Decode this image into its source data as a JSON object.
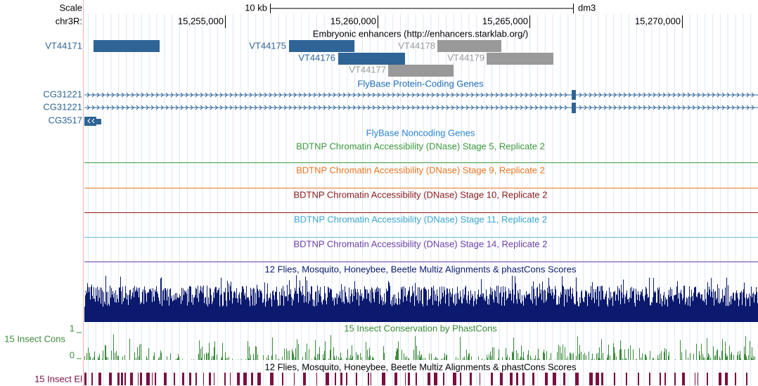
{
  "header": {
    "scale_label": "Scale",
    "chrom_label": "chr3R:",
    "scale_bar": "10 kb",
    "assembly": "dm3",
    "positions": [
      "15,255,000",
      "15,260,000",
      "15,265,000",
      "15,270,000"
    ]
  },
  "tracks": [
    {
      "title": "Embryonic enhancers (http://enhancers.starklab.org/)",
      "items": [
        "VT44171",
        "VT44175",
        "VT44178",
        "VT44176",
        "VT44179",
        "VT44177"
      ]
    },
    {
      "title": "FlyBase Protein-Coding Genes",
      "items": [
        "CG31221",
        "CG31221",
        "CG3517"
      ]
    },
    {
      "title": "FlyBase Noncoding Genes"
    },
    {
      "title": "BDTNP Chromatin Accessibility (DNase) Stage 5, Replicate 2"
    },
    {
      "title": "BDTNP Chromatin Accessibility (DNase) Stage 9, Replicate 2"
    },
    {
      "title": "BDTNP Chromatin Accessibility (DNase) Stage 10, Replicate 2"
    },
    {
      "title": "BDTNP Chromatin Accessibility (DNase) Stage 11, Replicate 2"
    },
    {
      "title": "BDTNP Chromatin Accessibility (DNase) Stage 14, Replicate 2"
    },
    {
      "title": "12 Flies, Mosquito, Honeybee, Beetle Multiz Alignments & phastCons Scores"
    },
    {
      "title": "15 Insect Conservation by PhastCons",
      "side_label": "15 Insect Cons",
      "axis": [
        "1",
        "0"
      ]
    },
    {
      "title": "12 Flies, Mosquito, Honeybee, Beetle Multiz Alignments & phastCons Scores",
      "side_label": "15 Insect El"
    }
  ]
}
